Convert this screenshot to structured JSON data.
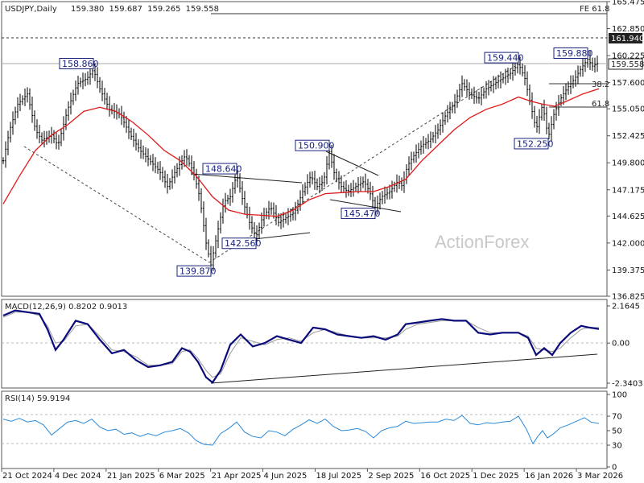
{
  "chart_data": {
    "type": "candlestick",
    "symbol": "USDJPY",
    "timeframe": "Daily",
    "ohlc": {
      "open": "159.380",
      "high": "159.687",
      "low": "159.265",
      "close": "159.558"
    },
    "x_ticks": [
      "21 Oct 2024",
      "4 Dec 2024",
      "21 Jan 2025",
      "6 Mar 2025",
      "21 Apr 2025",
      "4 Jun 2025",
      "18 Jul 2025",
      "2 Sep 2025",
      "16 Oct 2025",
      "1 Dec 2025",
      "16 Jan 2026",
      "3 Mar 2026"
    ],
    "price_panel": {
      "y_ticks": [
        "165.475",
        "162.850",
        "160.225",
        "157.600",
        "155.050",
        "152.425",
        "149.800",
        "147.175",
        "144.625",
        "142.000",
        "139.375",
        "136.825"
      ],
      "ylim": [
        136.825,
        165.475
      ],
      "current_price_label": "159.558",
      "level_label": "161.940",
      "fib_labels": [
        "FE 61.8",
        "38.2",
        "61.8"
      ],
      "swing_labels": [
        {
          "text": "158.860",
          "price": 158.86
        },
        {
          "text": "139.870",
          "price": 139.87
        },
        {
          "text": "148.640",
          "price": 148.64
        },
        {
          "text": "142.560",
          "price": 142.56
        },
        {
          "text": "150.900",
          "price": 150.9
        },
        {
          "text": "145.470",
          "price": 145.47
        },
        {
          "text": "159.440",
          "price": 159.44
        },
        {
          "text": "152.250",
          "price": 152.25
        },
        {
          "text": "159.880",
          "price": 159.88
        }
      ],
      "close_points": [
        [
          0,
          150.0
        ],
        [
          8,
          153.0
        ],
        [
          18,
          155.5
        ],
        [
          30,
          156.5
        ],
        [
          40,
          153.0
        ],
        [
          48,
          152.0
        ],
        [
          60,
          152.5
        ],
        [
          68,
          151.5
        ],
        [
          80,
          155.0
        ],
        [
          92,
          157.5
        ],
        [
          104,
          158.0
        ],
        [
          112,
          158.86
        ],
        [
          120,
          157.0
        ],
        [
          132,
          155.0
        ],
        [
          145,
          154.5
        ],
        [
          158,
          152.5
        ],
        [
          170,
          151.0
        ],
        [
          182,
          150.0
        ],
        [
          194,
          149.0
        ],
        [
          204,
          147.5
        ],
        [
          214,
          149.0
        ],
        [
          226,
          150.5
        ],
        [
          236,
          149.0
        ],
        [
          244,
          146.5
        ],
        [
          252,
          142.0
        ],
        [
          258,
          139.87
        ],
        [
          266,
          143.0
        ],
        [
          274,
          146.0
        ],
        [
          282,
          146.5
        ],
        [
          290,
          148.64
        ],
        [
          298,
          146.0
        ],
        [
          306,
          144.0
        ],
        [
          314,
          142.56
        ],
        [
          322,
          144.5
        ],
        [
          332,
          145.5
        ],
        [
          342,
          144.0
        ],
        [
          352,
          144.5
        ],
        [
          362,
          145.0
        ],
        [
          372,
          147.0
        ],
        [
          382,
          148.5
        ],
        [
          390,
          147.5
        ],
        [
          398,
          148.0
        ],
        [
          405,
          150.9
        ],
        [
          412,
          148.5
        ],
        [
          420,
          147.5
        ],
        [
          428,
          147.0
        ],
        [
          438,
          147.5
        ],
        [
          448,
          148.0
        ],
        [
          455,
          147.0
        ],
        [
          462,
          145.47
        ],
        [
          470,
          146.5
        ],
        [
          480,
          147.0
        ],
        [
          490,
          148.0
        ],
        [
          496,
          147.5
        ],
        [
          502,
          149.5
        ],
        [
          510,
          150.5
        ],
        [
          520,
          151.5
        ],
        [
          530,
          152.0
        ],
        [
          540,
          153.0
        ],
        [
          550,
          154.5
        ],
        [
          560,
          155.5
        ],
        [
          570,
          157.5
        ],
        [
          580,
          156.5
        ],
        [
          590,
          156.0
        ],
        [
          600,
          157.0
        ],
        [
          610,
          157.5
        ],
        [
          620,
          158.0
        ],
        [
          630,
          158.5
        ],
        [
          640,
          159.44
        ],
        [
          648,
          158.0
        ],
        [
          655,
          155.5
        ],
        [
          662,
          153.0
        ],
        [
          670,
          155.5
        ],
        [
          677,
          152.25
        ],
        [
          684,
          154.5
        ],
        [
          692,
          156.0
        ],
        [
          700,
          157.0
        ],
        [
          710,
          158.0
        ],
        [
          718,
          159.0
        ],
        [
          726,
          159.88
        ],
        [
          732,
          159.2
        ],
        [
          740,
          159.558
        ]
      ],
      "ma_points": [
        [
          0,
          145.8
        ],
        [
          20,
          148.5
        ],
        [
          40,
          151.0
        ],
        [
          60,
          152.5
        ],
        [
          80,
          153.5
        ],
        [
          100,
          154.8
        ],
        [
          120,
          155.2
        ],
        [
          140,
          154.8
        ],
        [
          160,
          153.8
        ],
        [
          180,
          152.5
        ],
        [
          200,
          151.0
        ],
        [
          220,
          150.0
        ],
        [
          240,
          148.5
        ],
        [
          260,
          146.5
        ],
        [
          280,
          145.2
        ],
        [
          300,
          144.8
        ],
        [
          320,
          144.7
        ],
        [
          340,
          144.6
        ],
        [
          360,
          145.2
        ],
        [
          380,
          146.2
        ],
        [
          400,
          146.8
        ],
        [
          420,
          146.9
        ],
        [
          440,
          147.0
        ],
        [
          460,
          147.0
        ],
        [
          480,
          147.5
        ],
        [
          500,
          148.2
        ],
        [
          520,
          150.0
        ],
        [
          540,
          151.5
        ],
        [
          560,
          153.0
        ],
        [
          580,
          154.2
        ],
        [
          600,
          155.0
        ],
        [
          620,
          155.5
        ],
        [
          640,
          156.2
        ],
        [
          655,
          155.8
        ],
        [
          670,
          155.5
        ],
        [
          685,
          155.3
        ],
        [
          700,
          155.8
        ],
        [
          720,
          156.5
        ],
        [
          740,
          157.0
        ]
      ]
    },
    "macd_panel": {
      "label": "MACD(12,26,9) 0.8202 0.9013",
      "y_ticks": [
        "2.1645",
        "0.00",
        "-2.3403"
      ],
      "ylim": [
        -2.3403,
        2.1645
      ],
      "macd_points": [
        [
          0,
          1.6
        ],
        [
          15,
          1.9
        ],
        [
          30,
          1.8
        ],
        [
          45,
          1.7
        ],
        [
          55,
          0.8
        ],
        [
          65,
          -0.4
        ],
        [
          75,
          0.2
        ],
        [
          90,
          1.3
        ],
        [
          105,
          1.1
        ],
        [
          120,
          0.2
        ],
        [
          135,
          -0.6
        ],
        [
          150,
          -0.4
        ],
        [
          165,
          -1.0
        ],
        [
          180,
          -1.4
        ],
        [
          195,
          -1.3
        ],
        [
          210,
          -1.1
        ],
        [
          222,
          -0.3
        ],
        [
          232,
          -0.5
        ],
        [
          242,
          -1.1
        ],
        [
          252,
          -2.0
        ],
        [
          260,
          -2.3
        ],
        [
          270,
          -1.6
        ],
        [
          282,
          -0.1
        ],
        [
          295,
          0.5
        ],
        [
          310,
          -0.2
        ],
        [
          325,
          0.0
        ],
        [
          340,
          0.4
        ],
        [
          355,
          0.2
        ],
        [
          370,
          0.0
        ],
        [
          385,
          0.9
        ],
        [
          400,
          0.8
        ],
        [
          415,
          0.5
        ],
        [
          430,
          0.4
        ],
        [
          445,
          0.3
        ],
        [
          460,
          0.4
        ],
        [
          475,
          0.2
        ],
        [
          490,
          0.5
        ],
        [
          500,
          1.1
        ],
        [
          515,
          1.2
        ],
        [
          530,
          1.3
        ],
        [
          545,
          1.4
        ],
        [
          560,
          1.3
        ],
        [
          575,
          1.3
        ],
        [
          590,
          0.6
        ],
        [
          605,
          0.5
        ],
        [
          620,
          0.6
        ],
        [
          640,
          0.6
        ],
        [
          652,
          0.3
        ],
        [
          662,
          -0.7
        ],
        [
          672,
          -0.3
        ],
        [
          682,
          -0.7
        ],
        [
          692,
          0.0
        ],
        [
          705,
          0.6
        ],
        [
          718,
          1.0
        ],
        [
          728,
          0.9
        ],
        [
          740,
          0.82
        ]
      ],
      "signal_points": [
        [
          0,
          1.5
        ],
        [
          15,
          1.8
        ],
        [
          30,
          1.8
        ],
        [
          45,
          1.6
        ],
        [
          55,
          1.0
        ],
        [
          65,
          0.0
        ],
        [
          75,
          0.1
        ],
        [
          90,
          1.0
        ],
        [
          105,
          1.1
        ],
        [
          120,
          0.4
        ],
        [
          135,
          -0.4
        ],
        [
          150,
          -0.5
        ],
        [
          165,
          -0.8
        ],
        [
          180,
          -1.3
        ],
        [
          195,
          -1.3
        ],
        [
          210,
          -1.2
        ],
        [
          222,
          -0.5
        ],
        [
          232,
          -0.4
        ],
        [
          242,
          -0.9
        ],
        [
          252,
          -1.6
        ],
        [
          260,
          -2.0
        ],
        [
          270,
          -1.8
        ],
        [
          282,
          -0.6
        ],
        [
          295,
          0.3
        ],
        [
          310,
          0.1
        ],
        [
          325,
          -0.1
        ],
        [
          340,
          0.2
        ],
        [
          355,
          0.3
        ],
        [
          370,
          0.1
        ],
        [
          385,
          0.6
        ],
        [
          400,
          0.8
        ],
        [
          415,
          0.6
        ],
        [
          430,
          0.4
        ],
        [
          445,
          0.3
        ],
        [
          460,
          0.3
        ],
        [
          475,
          0.3
        ],
        [
          490,
          0.4
        ],
        [
          500,
          0.8
        ],
        [
          515,
          1.1
        ],
        [
          530,
          1.2
        ],
        [
          545,
          1.3
        ],
        [
          560,
          1.3
        ],
        [
          575,
          1.3
        ],
        [
          590,
          0.9
        ],
        [
          605,
          0.6
        ],
        [
          620,
          0.6
        ],
        [
          640,
          0.6
        ],
        [
          652,
          0.4
        ],
        [
          662,
          -0.3
        ],
        [
          672,
          -0.4
        ],
        [
          682,
          -0.5
        ],
        [
          692,
          -0.3
        ],
        [
          705,
          0.3
        ],
        [
          718,
          0.8
        ],
        [
          728,
          0.9
        ],
        [
          740,
          0.9
        ]
      ]
    },
    "rsi_panel": {
      "label": "RSI(14) 59.9194",
      "y_ticks": [
        "100",
        "70",
        "50",
        "30",
        "0"
      ],
      "ylim": [
        0,
        100
      ],
      "rsi_points": [
        [
          0,
          66
        ],
        [
          10,
          63
        ],
        [
          20,
          67
        ],
        [
          30,
          62
        ],
        [
          40,
          64
        ],
        [
          50,
          58
        ],
        [
          60,
          44
        ],
        [
          70,
          53
        ],
        [
          80,
          62
        ],
        [
          90,
          64
        ],
        [
          100,
          60
        ],
        [
          110,
          66
        ],
        [
          120,
          55
        ],
        [
          130,
          50
        ],
        [
          140,
          52
        ],
        [
          150,
          45
        ],
        [
          160,
          47
        ],
        [
          170,
          42
        ],
        [
          180,
          46
        ],
        [
          190,
          43
        ],
        [
          200,
          48
        ],
        [
          210,
          50
        ],
        [
          220,
          53
        ],
        [
          230,
          47
        ],
        [
          240,
          36
        ],
        [
          250,
          31
        ],
        [
          260,
          30
        ],
        [
          270,
          46
        ],
        [
          280,
          53
        ],
        [
          290,
          62
        ],
        [
          300,
          48
        ],
        [
          310,
          42
        ],
        [
          320,
          40
        ],
        [
          330,
          50
        ],
        [
          340,
          48
        ],
        [
          350,
          43
        ],
        [
          360,
          52
        ],
        [
          370,
          58
        ],
        [
          380,
          65
        ],
        [
          390,
          60
        ],
        [
          400,
          66
        ],
        [
          410,
          56
        ],
        [
          420,
          50
        ],
        [
          430,
          51
        ],
        [
          440,
          53
        ],
        [
          450,
          49
        ],
        [
          460,
          40
        ],
        [
          470,
          50
        ],
        [
          480,
          54
        ],
        [
          490,
          56
        ],
        [
          500,
          63
        ],
        [
          510,
          60
        ],
        [
          520,
          61
        ],
        [
          530,
          62
        ],
        [
          540,
          62
        ],
        [
          550,
          66
        ],
        [
          560,
          64
        ],
        [
          570,
          71
        ],
        [
          580,
          60
        ],
        [
          590,
          58
        ],
        [
          600,
          61
        ],
        [
          610,
          60
        ],
        [
          620,
          62
        ],
        [
          630,
          63
        ],
        [
          640,
          70
        ],
        [
          650,
          52
        ],
        [
          658,
          32
        ],
        [
          664,
          42
        ],
        [
          670,
          50
        ],
        [
          676,
          40
        ],
        [
          684,
          46
        ],
        [
          692,
          54
        ],
        [
          702,
          58
        ],
        [
          712,
          63
        ],
        [
          722,
          68
        ],
        [
          730,
          62
        ],
        [
          740,
          59.92
        ]
      ]
    },
    "colors": {
      "price": "#000000",
      "ma": "#e01818",
      "macd": "#0a0a7a",
      "signal": "#999999",
      "rsi": "#2a8ad8",
      "label_border": "#1a237e",
      "label_text": "#1a237e"
    },
    "watermark": "ActionForex",
    "grid": false
  }
}
